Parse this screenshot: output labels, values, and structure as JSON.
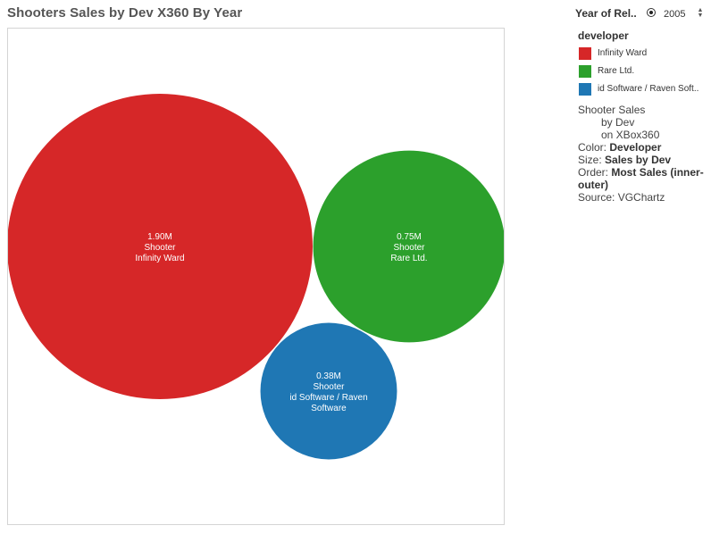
{
  "title": "Shooters Sales by Dev X360 By Year",
  "filter": {
    "label": "Year of Rel..",
    "value": "2005"
  },
  "legend": {
    "title": "developer",
    "items": [
      {
        "label": "Infinity Ward",
        "color": "#d62728"
      },
      {
        "label": "Rare Ltd.",
        "color": "#2ca02c"
      },
      {
        "label": "id Software / Raven Soft..",
        "color": "#1f77b4"
      }
    ]
  },
  "description": {
    "line1": "Shooter Sales",
    "line2": "by Dev",
    "line3": "on XBox360",
    "color_label": "Color:",
    "color_value": "Developer",
    "size_label": "Size:",
    "size_value": "Sales by Dev",
    "order_label": "Order:",
    "order_value": "Most Sales (inner-outer)",
    "source": "Source: VGChartz"
  },
  "chart_data": {
    "type": "bubble",
    "series": [
      {
        "developer": "Infinity Ward",
        "genre": "Shooter",
        "value": 1.9,
        "label": "1.90M",
        "color": "#d62728"
      },
      {
        "developer": "Rare Ltd.",
        "genre": "Shooter",
        "value": 0.75,
        "label": "0.75M",
        "color": "#2ca02c"
      },
      {
        "developer": "id Software / Raven Software",
        "genre": "Shooter",
        "value": 0.38,
        "label": "0.38M",
        "color": "#1f77b4"
      }
    ]
  }
}
